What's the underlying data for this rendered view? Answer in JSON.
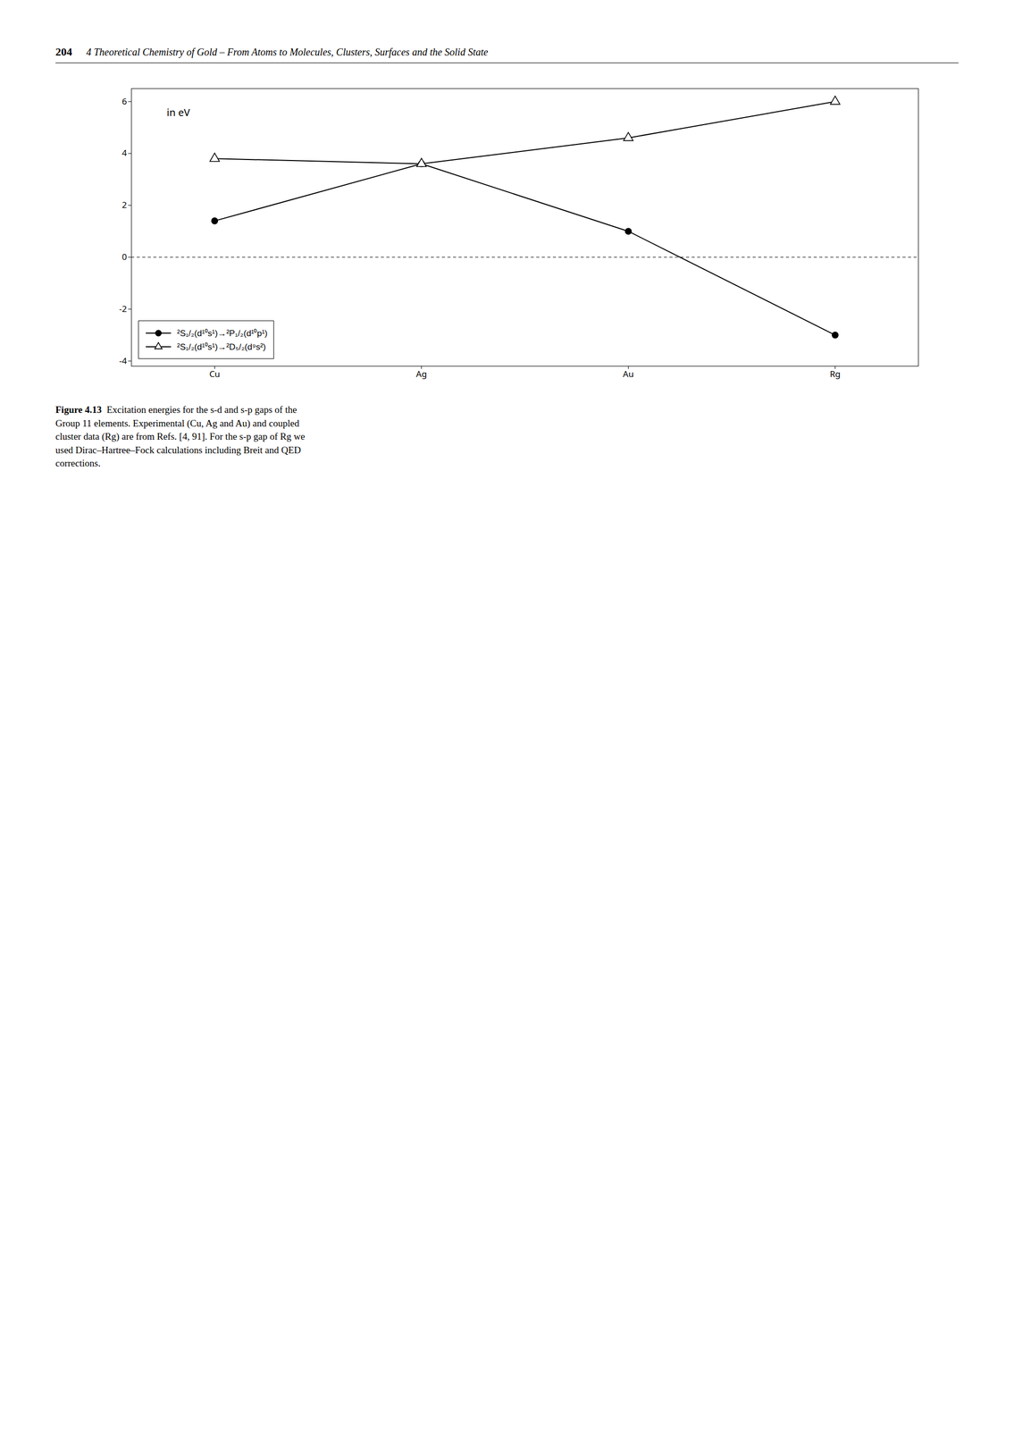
{
  "chart_data": {
    "type": "line",
    "header_number": "204",
    "header": "4  Theoretical Chemistry of Gold – From Atoms to Molecules, Clusters, Surfaces and the Solid State",
    "caption_label": "Figure 4.13",
    "caption": "Excitation energies for the s-d and s-p gaps of the\nGroup 11 elements. Experimental (Cu, Ag and Au) and coupled\ncluster data (Rg) are from Refs. [4, 91]. For the s-p gap of Rg we\nused Dirac–Hartree–Fock calculations including Breit and QED\ncorrections.",
    "categories": [
      "Cu",
      "Ag",
      "Au",
      "Rg"
    ],
    "series": [
      {
        "name": "²S₁/₂(d¹⁰s¹)→²P₁/₂(d¹⁰p¹)",
        "values": [
          1.4,
          3.6,
          1.0,
          -3.0
        ],
        "color": "#000000",
        "marker": "circle",
        "line_style": "solid"
      },
      {
        "name": "²S₁/₂(d¹⁰s¹)→²D₅/₂(d⁹s²)",
        "values": [
          3.8,
          3.6,
          4.6,
          6.0
        ],
        "color": "#000000",
        "marker": "open triangle",
        "line_style": "solid"
      }
    ],
    "ylim": [
      -4.2,
      6.5
    ],
    "yticks": [
      -4,
      -2,
      0,
      2,
      4,
      6
    ],
    "reference_lines": [
      {
        "y": 0,
        "line_style": "dashed"
      }
    ],
    "annotations": [
      {
        "text": "in eV"
      }
    ],
    "legend": "lower left"
  }
}
